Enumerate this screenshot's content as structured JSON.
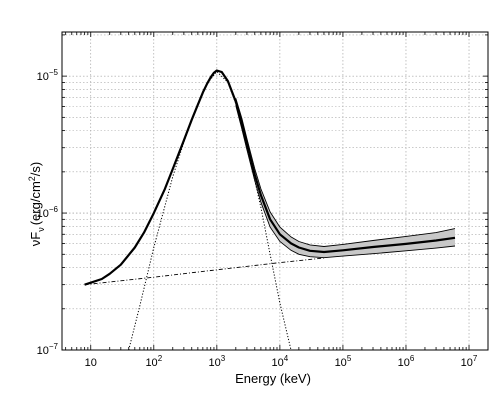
{
  "chart_data": {
    "type": "line",
    "title": "",
    "xlabel": "Energy (keV)",
    "ylabel": "νF",
    "ylabel_sub": "ν",
    "ylabel_units_pre": "(erg/cm",
    "ylabel_units_sup": "2",
    "ylabel_units_post": "/s)",
    "xscale": "log",
    "yscale": "log",
    "xlim": [
      3.5,
      20000000
    ],
    "ylim": [
      1e-07,
      2.1e-05
    ],
    "grid": true,
    "grid_style": "dotted",
    "x_ticks": [
      {
        "value": 10,
        "base": "10",
        "exp": ""
      },
      {
        "value": 100,
        "base": "10",
        "exp": "2"
      },
      {
        "value": 1000,
        "base": "10",
        "exp": "3"
      },
      {
        "value": 10000,
        "base": "10",
        "exp": "4"
      },
      {
        "value": 100000,
        "base": "10",
        "exp": "5"
      },
      {
        "value": 1000000,
        "base": "10",
        "exp": "6"
      },
      {
        "value": 10000000,
        "base": "10",
        "exp": "7"
      }
    ],
    "y_ticks": [
      {
        "value": 1e-07,
        "base": "10",
        "exp": "−7"
      },
      {
        "value": 1e-06,
        "base": "10",
        "exp": "−6"
      },
      {
        "value": 1e-05,
        "base": "10",
        "exp": "−5"
      }
    ],
    "series": [
      {
        "style": "solid",
        "x": [
          8,
          10,
          15,
          20,
          30,
          50,
          70,
          100,
          150,
          200,
          300,
          400,
          500,
          600,
          700,
          800,
          900,
          1000,
          1200,
          1500,
          2000,
          2500,
          3000,
          4000,
          5000,
          7000,
          10000,
          15000,
          20000,
          30000,
          50000,
          100000,
          300000,
          1000000,
          3000000,
          6000000
        ],
        "y": [
          3e-07,
          3.1e-07,
          3.3e-07,
          3.6e-07,
          4.2e-07,
          5.6e-07,
          7.2e-07,
          1e-06,
          1.5e-06,
          2.1e-06,
          3.4e-06,
          4.8e-06,
          6.2e-06,
          7.6e-06,
          8.8e-06,
          9.8e-06,
          1.06e-05,
          1.1e-05,
          1.07e-05,
          9.2e-06,
          6.5e-06,
          4.5e-06,
          3.2e-06,
          1.9e-06,
          1.35e-06,
          9e-07,
          7e-07,
          6e-07,
          5.6e-07,
          5.3e-07,
          5.2e-07,
          5.35e-07,
          5.65e-07,
          5.95e-07,
          6.3e-07,
          6.6e-07
        ]
      },
      {
        "style": "band_upper",
        "x": [
          2000,
          2500,
          3000,
          4000,
          5000,
          7000,
          10000,
          15000,
          20000,
          30000,
          50000,
          100000,
          300000,
          1000000,
          3000000,
          6000000
        ],
        "y": [
          6.9e-06,
          4.9e-06,
          3.5e-06,
          2.1e-06,
          1.5e-06,
          1.02e-06,
          7.9e-07,
          6.7e-07,
          6.2e-07,
          5.85e-07,
          5.7e-07,
          5.9e-07,
          6.3e-07,
          6.75e-07,
          7.2e-07,
          7.7e-07
        ]
      },
      {
        "style": "band_lower",
        "x": [
          2000,
          2500,
          3000,
          4000,
          5000,
          7000,
          10000,
          15000,
          20000,
          30000,
          50000,
          100000,
          300000,
          1000000,
          3000000,
          6000000
        ],
        "y": [
          6.1e-06,
          4.1e-06,
          2.9e-06,
          1.72e-06,
          1.2e-06,
          7.9e-07,
          6.2e-07,
          5.35e-07,
          5e-07,
          4.8e-07,
          4.72e-07,
          4.85e-07,
          5.05e-07,
          5.3e-07,
          5.55e-07,
          5.75e-07
        ]
      },
      {
        "style": "dash-dot",
        "x": [
          8,
          100,
          1000,
          10000,
          50000
        ],
        "y": [
          3e-07,
          3.4e-07,
          3.85e-07,
          4.35e-07,
          4.7e-07
        ]
      },
      {
        "style": "dotted",
        "x": [
          40,
          60,
          100,
          200,
          300,
          500,
          700,
          1000,
          1500,
          2000,
          3000,
          5000,
          7000,
          10000,
          15000
        ],
        "y": [
          1e-07,
          2.1e-07,
          5.6e-07,
          1.85e-06,
          3.3e-06,
          6.3e-06,
          8.8e-06,
          1.08e-05,
          9e-06,
          6.3e-06,
          3.1e-06,
          1.1e-06,
          5e-07,
          2.2e-07,
          1e-07
        ]
      }
    ]
  }
}
